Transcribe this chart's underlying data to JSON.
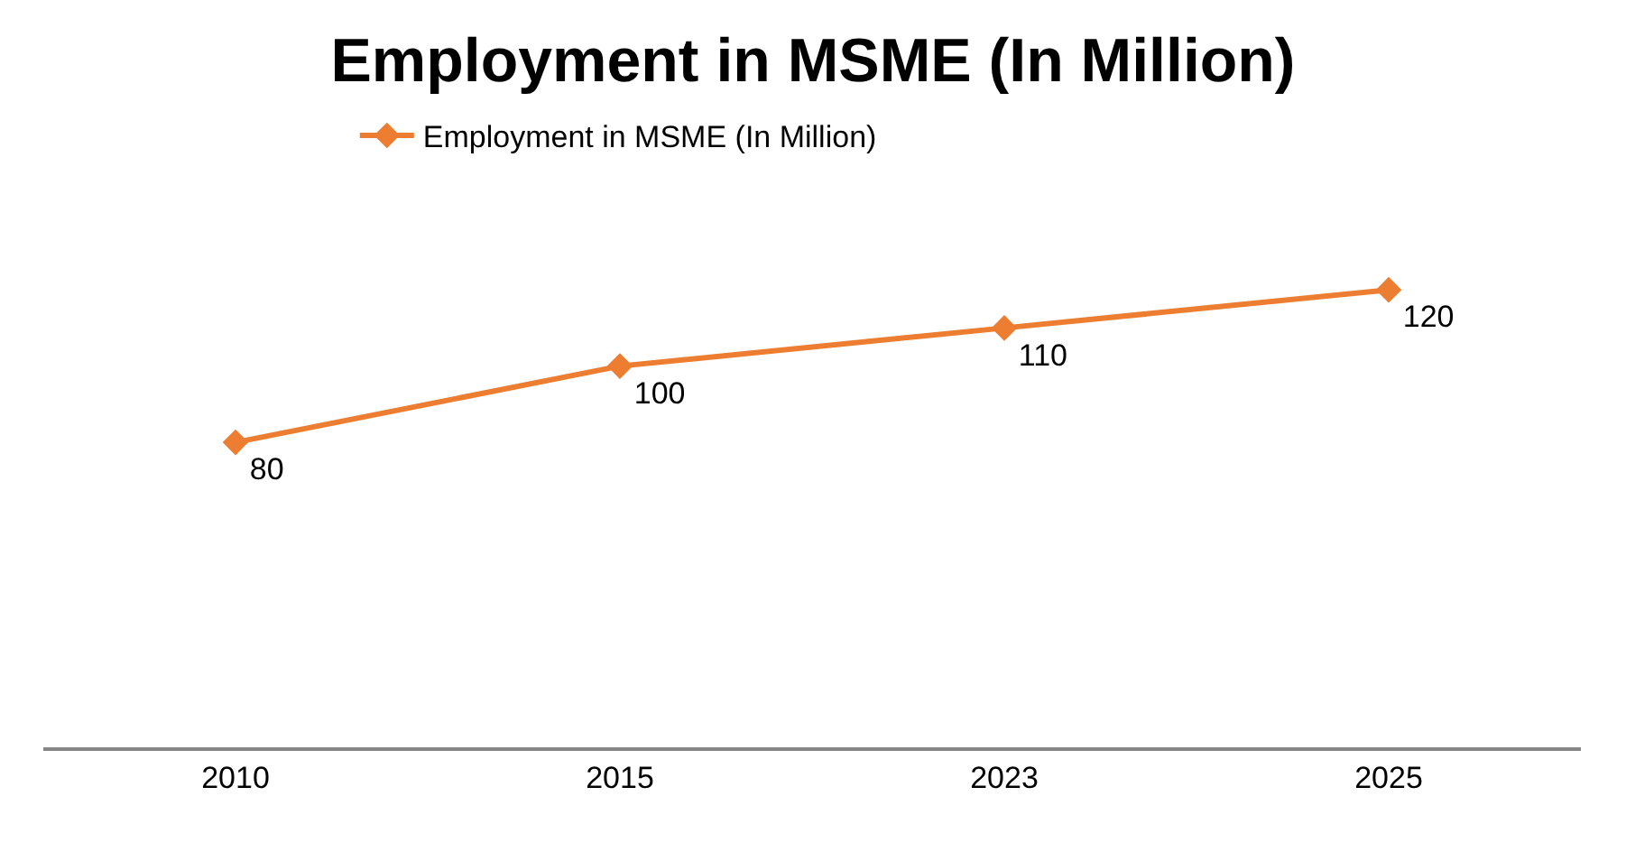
{
  "chart_data": {
    "type": "line",
    "title": "Employment in MSME (In Million)",
    "categories": [
      "2010",
      "2015",
      "2023",
      "2025"
    ],
    "series": [
      {
        "name": "Employment in MSME (In Million)",
        "color": "#ed7d31",
        "values": [
          80,
          100,
          110,
          120
        ]
      }
    ],
    "tick_labels": "x",
    "data_labels": true,
    "legend": "top",
    "marker": "diamond",
    "line_style": "solid"
  }
}
